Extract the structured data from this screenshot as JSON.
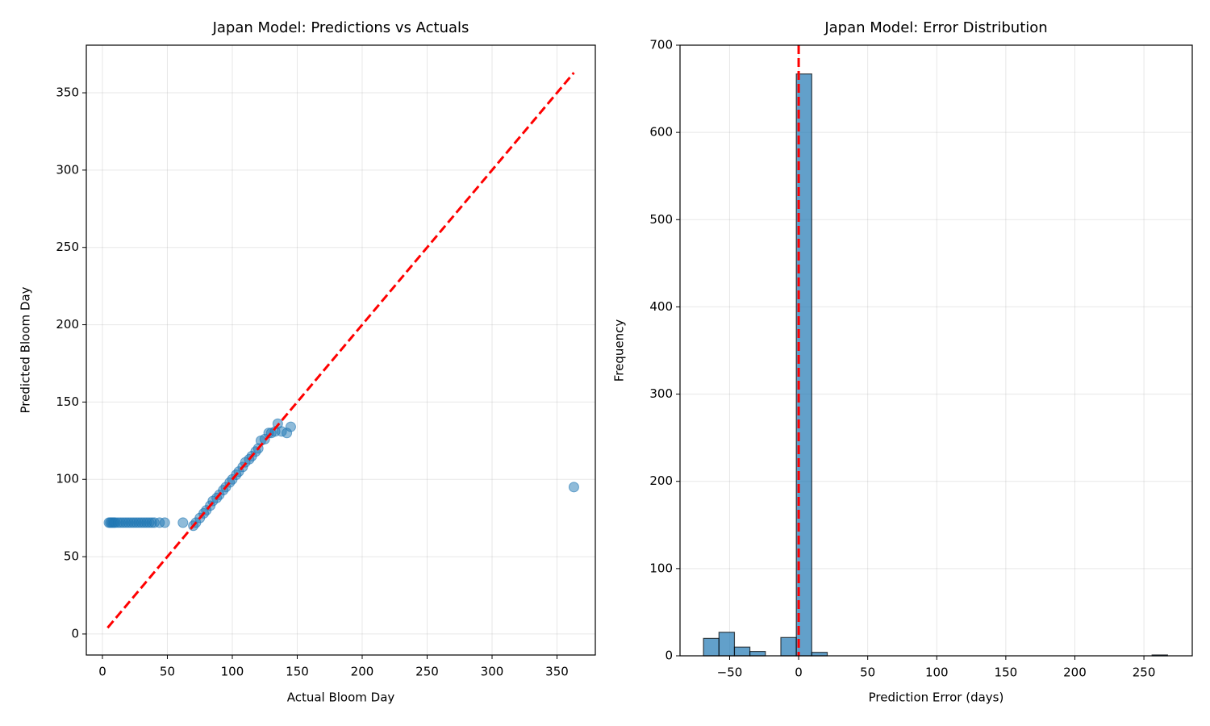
{
  "chart_data": [
    {
      "type": "scatter",
      "title": "Japan Model: Predictions vs Actuals",
      "x_label": "Actual Bloom Day",
      "y_label": "Predicted Bloom Day",
      "color": "#1f77b4",
      "grid": true,
      "x": [
        5,
        6,
        7,
        8,
        9,
        10,
        12,
        14,
        16,
        18,
        20,
        22,
        24,
        26,
        28,
        30,
        32,
        34,
        36,
        38,
        40,
        44,
        48,
        62,
        70,
        72,
        75,
        78,
        80,
        83,
        85,
        88,
        90,
        93,
        95,
        98,
        100,
        103,
        105,
        108,
        110,
        113,
        115,
        118,
        120,
        122,
        125,
        128,
        130,
        133,
        135,
        138,
        142,
        145,
        363
      ],
      "y": [
        72,
        72,
        72,
        72,
        72,
        72,
        72,
        72,
        72,
        72,
        72,
        72,
        72,
        72,
        72,
        72,
        72,
        72,
        72,
        72,
        72,
        72,
        72,
        72,
        70,
        72,
        75,
        78,
        80,
        83,
        86,
        88,
        90,
        93,
        95,
        98,
        100,
        103,
        105,
        108,
        111,
        113,
        115,
        118,
        120,
        125,
        126,
        130,
        130,
        131,
        136,
        131,
        130,
        134,
        95
      ],
      "reference_line": {
        "x": [
          4,
          363
        ],
        "y": [
          4,
          363
        ],
        "color": "#ff0000"
      },
      "xlim": [
        -12.4,
        379.5
      ],
      "xticks": [
        0,
        50,
        100,
        150,
        200,
        250,
        300,
        350
      ],
      "ylim": [
        -13.6,
        380.8
      ],
      "yticks": [
        0,
        50,
        100,
        150,
        200,
        250,
        300,
        350
      ]
    },
    {
      "type": "histogram",
      "title": "Japan Model: Error Distribution",
      "x_label": "Prediction Error (days)",
      "y_label": "Frequency",
      "color": "#1f77b4",
      "grid": true,
      "bins": [
        -68.9,
        -57.7,
        -46.5,
        -35.3,
        -24.1,
        -12.9,
        -1.7,
        9.5,
        20.7,
        31.9,
        43.1,
        54.3,
        65.5,
        76.7,
        87.9,
        99.1,
        110.3,
        121.5,
        132.7,
        143.9,
        155.1,
        166.3,
        177.5,
        188.7,
        199.9,
        211.1,
        222.3,
        233.5,
        244.7,
        255.9,
        267.1
      ],
      "values": [
        20,
        27,
        10,
        5,
        0,
        21,
        667,
        4,
        0,
        0,
        0,
        0,
        0,
        0,
        0,
        0,
        0,
        0,
        0,
        0,
        0,
        0,
        0,
        0,
        0,
        0,
        0,
        0,
        0,
        1
      ],
      "reference_line": {
        "x": 0,
        "color": "#ff0000"
      },
      "xlim": [
        -85.9,
        285
      ],
      "xticks": [
        {
          "value": -50,
          "label": "−50"
        },
        0,
        50,
        100,
        150,
        200,
        250
      ],
      "ylim": [
        0,
        700
      ],
      "yticks": [
        0,
        100,
        200,
        300,
        400,
        500,
        600,
        700
      ]
    }
  ]
}
